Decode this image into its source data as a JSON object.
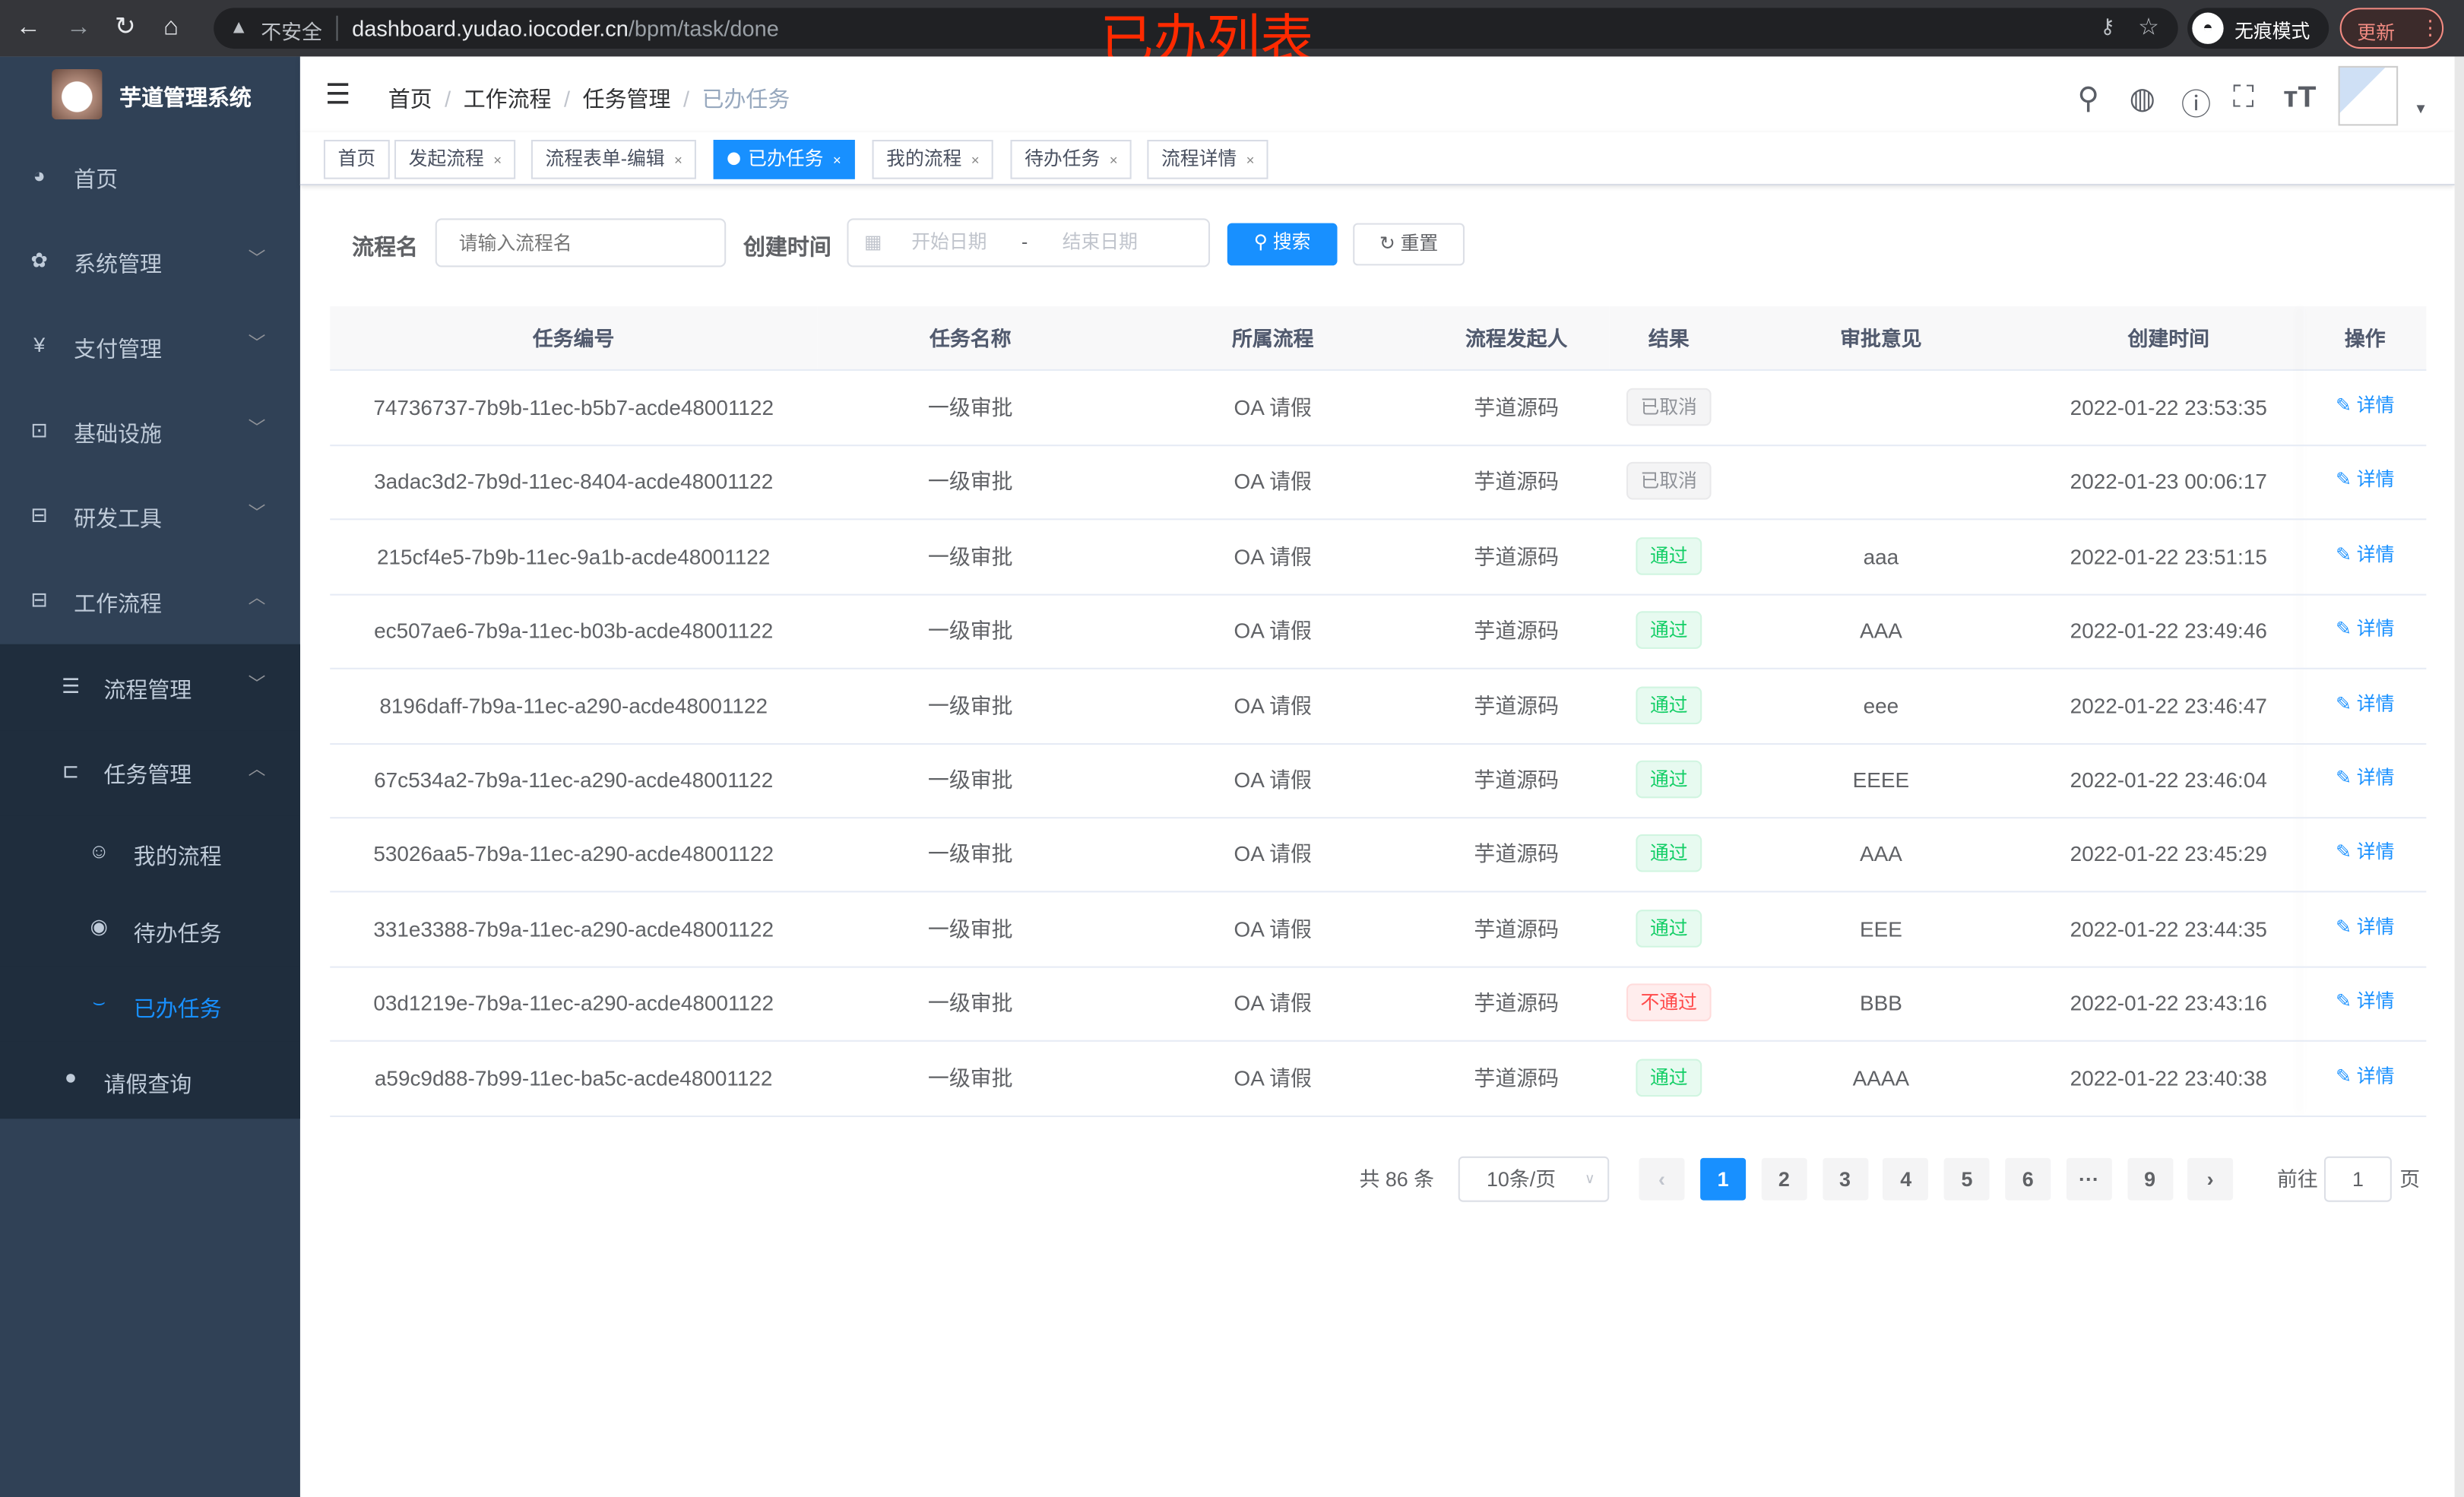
{
  "browser": {
    "insecure_label": "不安全",
    "url_host": "dashboard.yudao.iocoder.cn",
    "url_path": "/bpm/task/done",
    "incognito_label": "无痕模式",
    "update_label": "更新"
  },
  "overlay_title": "已办列表",
  "sidebar": {
    "brand": "芋道管理系统",
    "items": [
      {
        "label": "首页",
        "icon": "dashboard-icon"
      },
      {
        "label": "系统管理",
        "icon": "gear-icon"
      },
      {
        "label": "支付管理",
        "icon": "yen-icon"
      },
      {
        "label": "基础设施",
        "icon": "monitor-icon"
      },
      {
        "label": "研发工具",
        "icon": "toolbox-icon"
      },
      {
        "label": "工作流程",
        "icon": "toolbox-icon"
      },
      {
        "label": "流程管理",
        "icon": "list-icon"
      },
      {
        "label": "任务管理",
        "icon": "task-icon"
      },
      {
        "label": "我的流程",
        "icon": "robot-icon"
      },
      {
        "label": "待办任务",
        "icon": "eye-icon"
      },
      {
        "label": "已办任务",
        "icon": "eye-closed-icon"
      },
      {
        "label": "请假查询",
        "icon": "user-icon"
      }
    ]
  },
  "breadcrumb": [
    "首页",
    "工作流程",
    "任务管理",
    "已办任务"
  ],
  "tags": [
    {
      "label": "首页",
      "closable": false
    },
    {
      "label": "发起流程",
      "closable": true
    },
    {
      "label": "流程表单-编辑",
      "closable": true
    },
    {
      "label": "已办任务",
      "closable": true,
      "active": true
    },
    {
      "label": "我的流程",
      "closable": true
    },
    {
      "label": "待办任务",
      "closable": true
    },
    {
      "label": "流程详情",
      "closable": true
    }
  ],
  "search": {
    "name_label": "流程名",
    "name_placeholder": "请输入流程名",
    "time_label": "创建时间",
    "start_placeholder": "开始日期",
    "range_sep": "-",
    "end_placeholder": "结束日期",
    "search_button": "搜索",
    "reset_button": "重置"
  },
  "table": {
    "columns": [
      "任务编号",
      "任务名称",
      "所属流程",
      "流程发起人",
      "结果",
      "审批意见",
      "创建时间",
      "操作"
    ],
    "action_label": "详情",
    "rows": [
      {
        "id": "74736737-7b9b-11ec-b5b7-acde48001122",
        "name": "一级审批",
        "process": "OA 请假",
        "starter": "芋道源码",
        "result": "已取消",
        "result_type": "cancel",
        "comment": "",
        "created": "2022-01-22 23:53:35"
      },
      {
        "id": "3adac3d2-7b9d-11ec-8404-acde48001122",
        "name": "一级审批",
        "process": "OA 请假",
        "starter": "芋道源码",
        "result": "已取消",
        "result_type": "cancel",
        "comment": "",
        "created": "2022-01-23 00:06:17"
      },
      {
        "id": "215cf4e5-7b9b-11ec-9a1b-acde48001122",
        "name": "一级审批",
        "process": "OA 请假",
        "starter": "芋道源码",
        "result": "通过",
        "result_type": "pass",
        "comment": "aaa",
        "created": "2022-01-22 23:51:15"
      },
      {
        "id": "ec507ae6-7b9a-11ec-b03b-acde48001122",
        "name": "一级审批",
        "process": "OA 请假",
        "starter": "芋道源码",
        "result": "通过",
        "result_type": "pass",
        "comment": "AAA",
        "created": "2022-01-22 23:49:46"
      },
      {
        "id": "8196daff-7b9a-11ec-a290-acde48001122",
        "name": "一级审批",
        "process": "OA 请假",
        "starter": "芋道源码",
        "result": "通过",
        "result_type": "pass",
        "comment": "eee",
        "created": "2022-01-22 23:46:47"
      },
      {
        "id": "67c534a2-7b9a-11ec-a290-acde48001122",
        "name": "一级审批",
        "process": "OA 请假",
        "starter": "芋道源码",
        "result": "通过",
        "result_type": "pass",
        "comment": "EEEE",
        "created": "2022-01-22 23:46:04"
      },
      {
        "id": "53026aa5-7b9a-11ec-a290-acde48001122",
        "name": "一级审批",
        "process": "OA 请假",
        "starter": "芋道源码",
        "result": "通过",
        "result_type": "pass",
        "comment": "AAA",
        "created": "2022-01-22 23:45:29"
      },
      {
        "id": "331e3388-7b9a-11ec-a290-acde48001122",
        "name": "一级审批",
        "process": "OA 请假",
        "starter": "芋道源码",
        "result": "通过",
        "result_type": "pass",
        "comment": "EEE",
        "created": "2022-01-22 23:44:35"
      },
      {
        "id": "03d1219e-7b9a-11ec-a290-acde48001122",
        "name": "一级审批",
        "process": "OA 请假",
        "starter": "芋道源码",
        "result": "不通过",
        "result_type": "fail",
        "comment": "BBB",
        "created": "2022-01-22 23:43:16"
      },
      {
        "id": "a59c9d88-7b99-11ec-ba5c-acde48001122",
        "name": "一级审批",
        "process": "OA 请假",
        "starter": "芋道源码",
        "result": "通过",
        "result_type": "pass",
        "comment": "AAAA",
        "created": "2022-01-22 23:40:38"
      }
    ]
  },
  "pagination": {
    "total_label": "共 86 条",
    "page_size": "10条/页",
    "pages": [
      "1",
      "2",
      "3",
      "4",
      "5",
      "6",
      "···",
      "9"
    ],
    "current": "1",
    "goto_label": "前往",
    "goto_value": "1",
    "page_suffix": "页"
  },
  "colors": {
    "accent": "#1890ff",
    "sidebar": "#304156",
    "submenu": "#1f2d3d",
    "pass": "#13ce66",
    "fail": "#ff4949",
    "overlay": "#ff2a00"
  }
}
